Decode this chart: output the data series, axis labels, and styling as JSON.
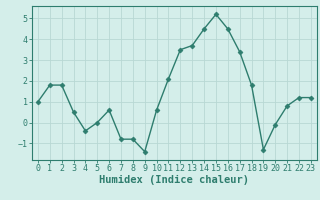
{
  "x": [
    0,
    1,
    2,
    3,
    4,
    5,
    6,
    7,
    8,
    9,
    10,
    11,
    12,
    13,
    14,
    15,
    16,
    17,
    18,
    19,
    20,
    21,
    22,
    23
  ],
  "y": [
    1.0,
    1.8,
    1.8,
    0.5,
    -0.4,
    0.0,
    0.6,
    -0.8,
    -0.8,
    -1.4,
    0.6,
    2.1,
    3.5,
    3.7,
    4.5,
    5.2,
    4.5,
    3.4,
    1.8,
    -1.3,
    -0.1,
    0.8,
    1.2,
    1.2
  ],
  "line_color": "#2e7d6e",
  "marker": "D",
  "marker_size": 2.5,
  "linewidth": 1.0,
  "xlabel": "Humidex (Indice chaleur)",
  "xlim": [
    -0.5,
    23.5
  ],
  "ylim": [
    -1.8,
    5.6
  ],
  "yticks": [
    -1,
    0,
    1,
    2,
    3,
    4,
    5
  ],
  "xticks": [
    0,
    1,
    2,
    3,
    4,
    5,
    6,
    7,
    8,
    9,
    10,
    11,
    12,
    13,
    14,
    15,
    16,
    17,
    18,
    19,
    20,
    21,
    22,
    23
  ],
  "bg_color": "#d4eeea",
  "grid_color": "#b8d8d4",
  "axes_color": "#2e7d6e",
  "tick_color": "#2e7d6e",
  "xlabel_fontsize": 7.5,
  "tick_fontsize": 6.0
}
